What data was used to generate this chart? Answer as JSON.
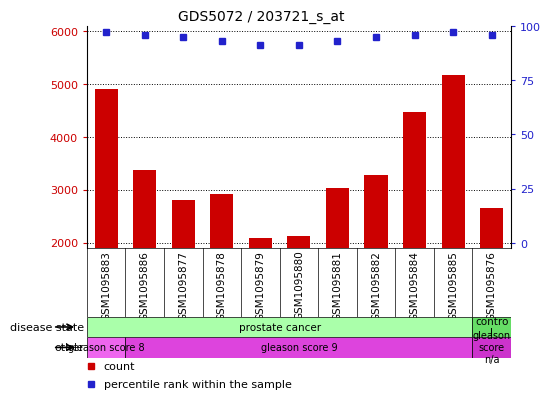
{
  "title": "GDS5072 / 203721_s_at",
  "samples": [
    "GSM1095883",
    "GSM1095886",
    "GSM1095877",
    "GSM1095878",
    "GSM1095879",
    "GSM1095880",
    "GSM1095881",
    "GSM1095882",
    "GSM1095884",
    "GSM1095885",
    "GSM1095876"
  ],
  "counts": [
    4900,
    3380,
    2800,
    2920,
    2080,
    2120,
    3040,
    3280,
    4480,
    5180,
    2650
  ],
  "percentile_ranks": [
    97,
    96,
    95,
    93,
    91,
    91,
    93,
    95,
    96,
    97,
    96
  ],
  "ylim_left": [
    1900,
    6100
  ],
  "ylim_right": [
    -2.27,
    100
  ],
  "yticks_left": [
    2000,
    3000,
    4000,
    5000,
    6000
  ],
  "yticks_right": [
    0,
    25,
    50,
    75,
    100
  ],
  "bar_color": "#cc0000",
  "dot_color": "#2222cc",
  "plot_bg_color": "#ffffff",
  "xtick_bg_color": "#cccccc",
  "grid_color": "#000000",
  "left_axis_color": "#cc0000",
  "right_axis_color": "#2222cc",
  "disease_state_groups": [
    {
      "label": "prostate cancer",
      "start": 0,
      "end": 10,
      "color": "#aaffaa"
    },
    {
      "label": "contro\nl",
      "start": 10,
      "end": 11,
      "color": "#66dd66"
    }
  ],
  "other_groups": [
    {
      "label": "gleason score 8",
      "start": 0,
      "end": 1,
      "color": "#ee66ee"
    },
    {
      "label": "gleason score 9",
      "start": 1,
      "end": 10,
      "color": "#dd44dd"
    },
    {
      "label": "gleason\nscore\nn/a",
      "start": 10,
      "end": 11,
      "color": "#cc33cc"
    }
  ]
}
